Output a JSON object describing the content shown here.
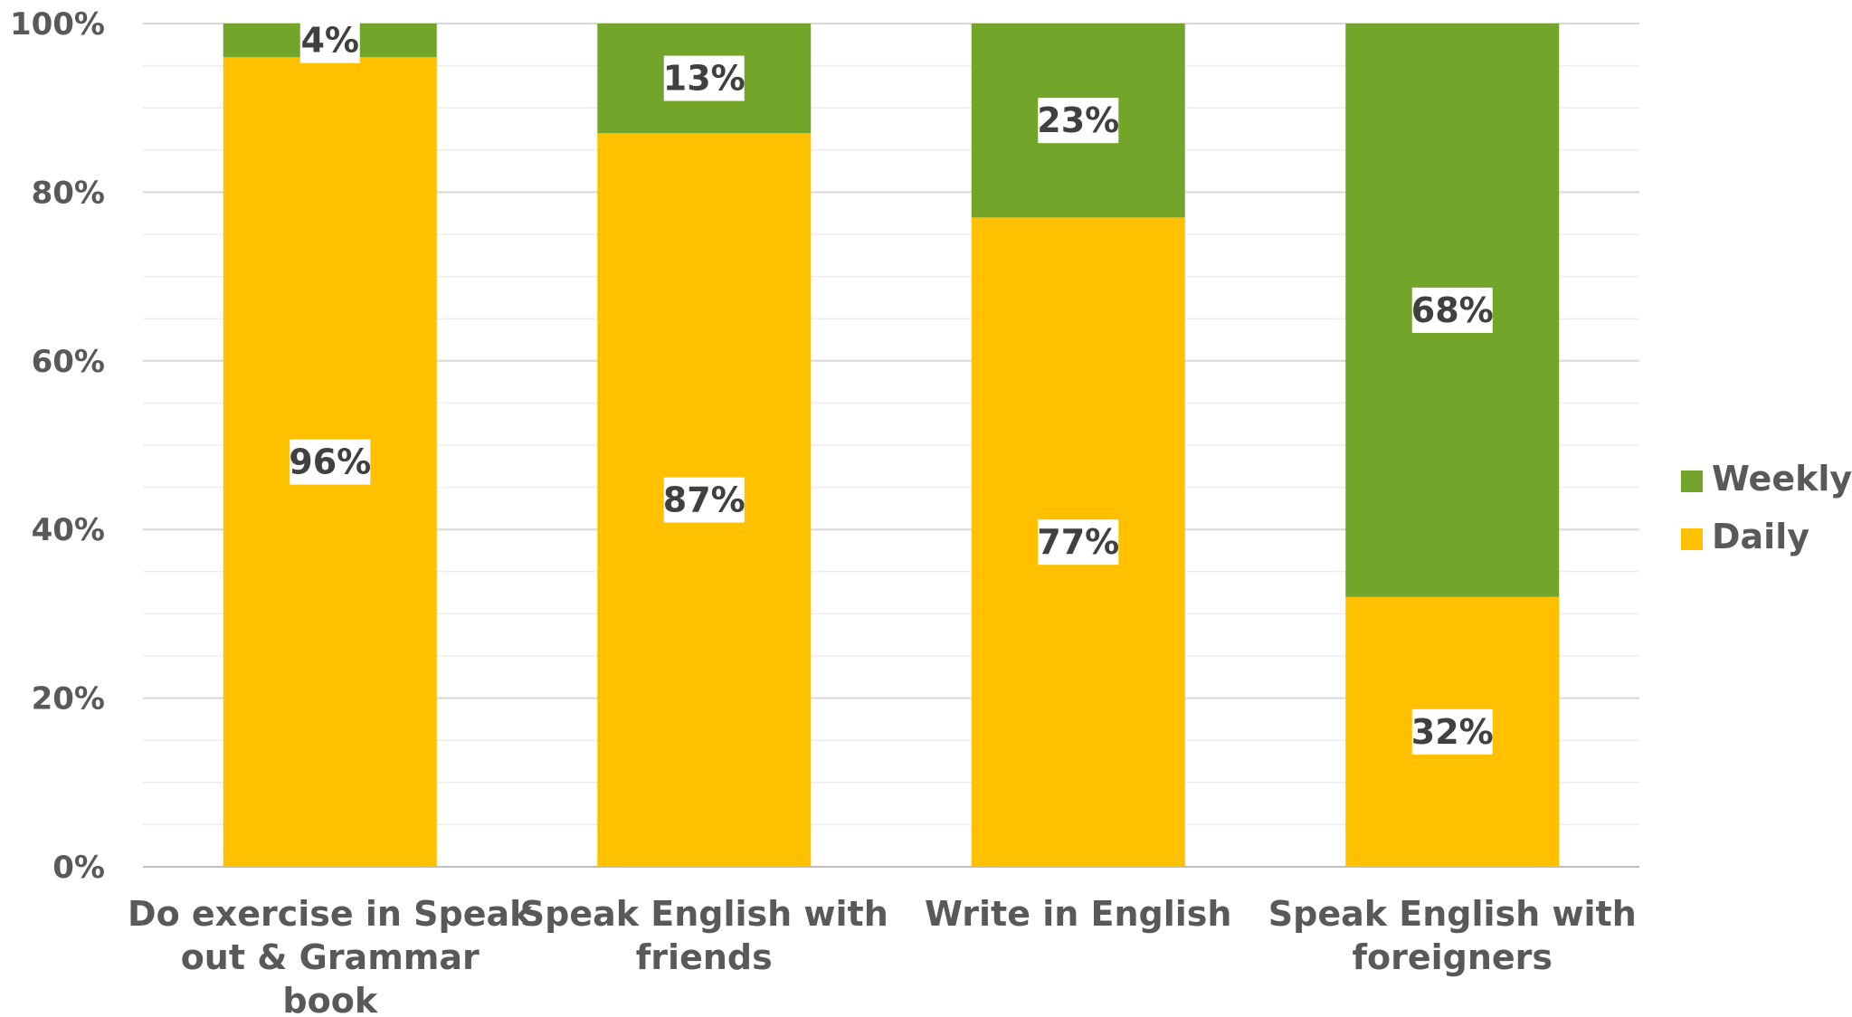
{
  "chart_data": {
    "type": "bar",
    "stacked": true,
    "categories": [
      [
        "Do exercise in Speak",
        "out & Grammar",
        "book"
      ],
      [
        "Speak English with",
        "friends"
      ],
      [
        "Write in English"
      ],
      [
        "Speak English with",
        "foreigners"
      ]
    ],
    "series": [
      {
        "name": "Daily",
        "values": [
          96,
          87,
          77,
          32
        ],
        "labels": [
          "96%",
          "87%",
          "77%",
          "32%"
        ],
        "color": "#FFC000"
      },
      {
        "name": "Weekly",
        "values": [
          4,
          13,
          23,
          68
        ],
        "labels": [
          "4%",
          "13%",
          "23%",
          "68%"
        ],
        "color": "#73A52A"
      }
    ],
    "yticks": [
      "0%",
      "20%",
      "40%",
      "60%",
      "80%",
      "100%"
    ],
    "ylim": [
      0,
      100
    ],
    "grid": true,
    "legend": {
      "position": "right",
      "order": [
        "Weekly",
        "Daily"
      ]
    },
    "title": "",
    "xlabel": "",
    "ylabel": ""
  }
}
